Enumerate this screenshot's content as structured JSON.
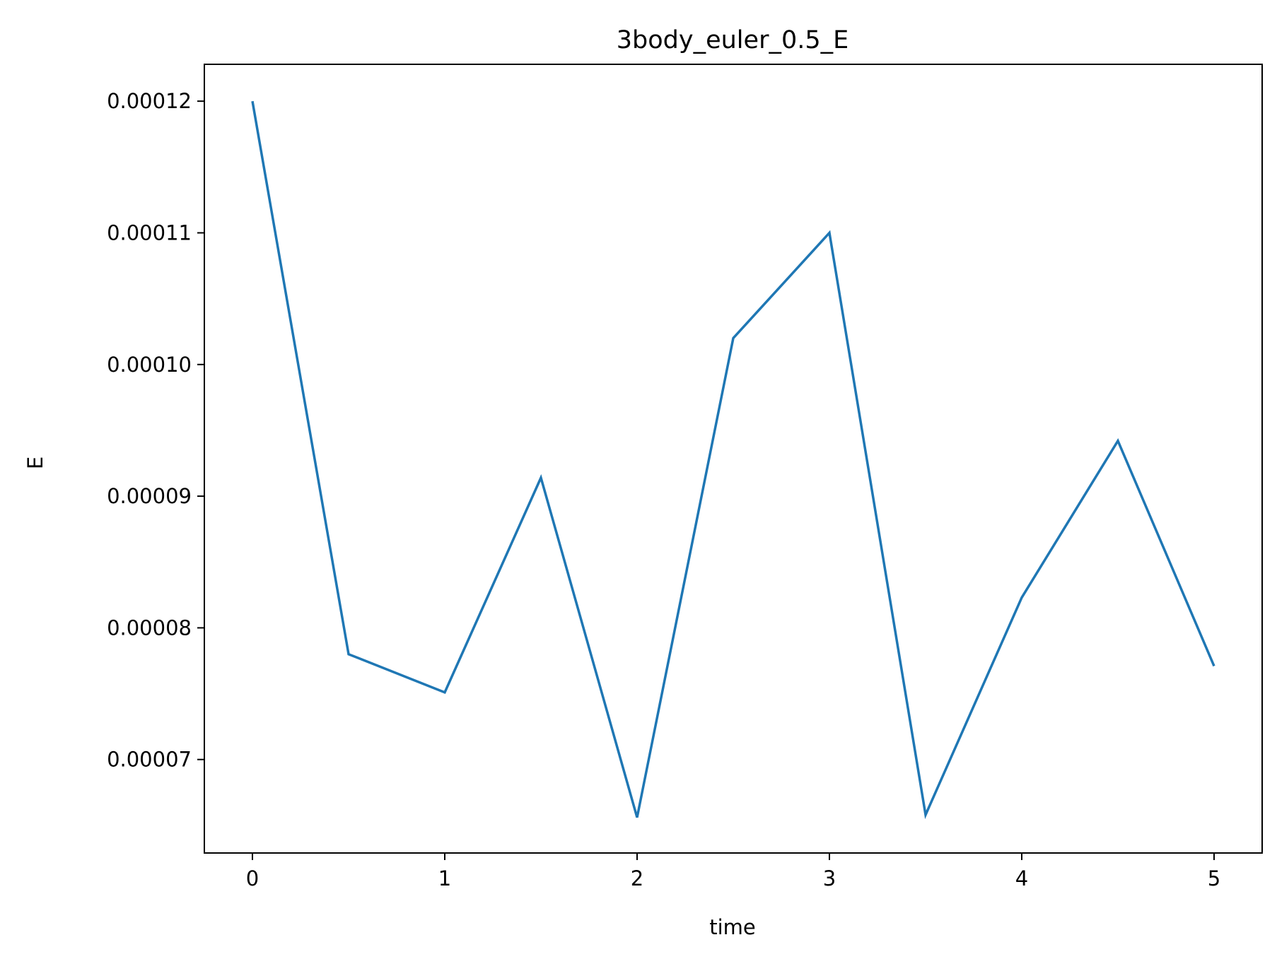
{
  "chart_data": {
    "type": "line",
    "title": "3body_euler_0.5_E",
    "xlabel": "time",
    "ylabel": "E",
    "xlim": [
      -0.25,
      5.25
    ],
    "ylim": [
      6.29e-05,
      0.0001228
    ],
    "xticks": [
      0,
      1,
      2,
      3,
      4,
      5
    ],
    "xtick_labels": [
      "0",
      "1",
      "2",
      "3",
      "4",
      "5"
    ],
    "yticks": [
      7e-05,
      8e-05,
      9e-05,
      0.0001,
      0.00011,
      0.00012
    ],
    "ytick_labels": [
      "0.00007",
      "0.00008",
      "0.00009",
      "0.00010",
      "0.00011",
      "0.00012"
    ],
    "grid": false,
    "series": [
      {
        "color": "#1f77b4",
        "x": [
          0,
          0.5,
          1,
          1.5,
          2,
          2.5,
          3,
          3.5,
          4,
          4.5,
          5
        ],
        "y": [
          0.00012,
          7.8e-05,
          7.51e-05,
          9.14e-05,
          6.56e-05,
          0.000102,
          0.00011,
          6.58e-05,
          8.23e-05,
          9.42e-05,
          7.71e-05
        ]
      }
    ]
  }
}
